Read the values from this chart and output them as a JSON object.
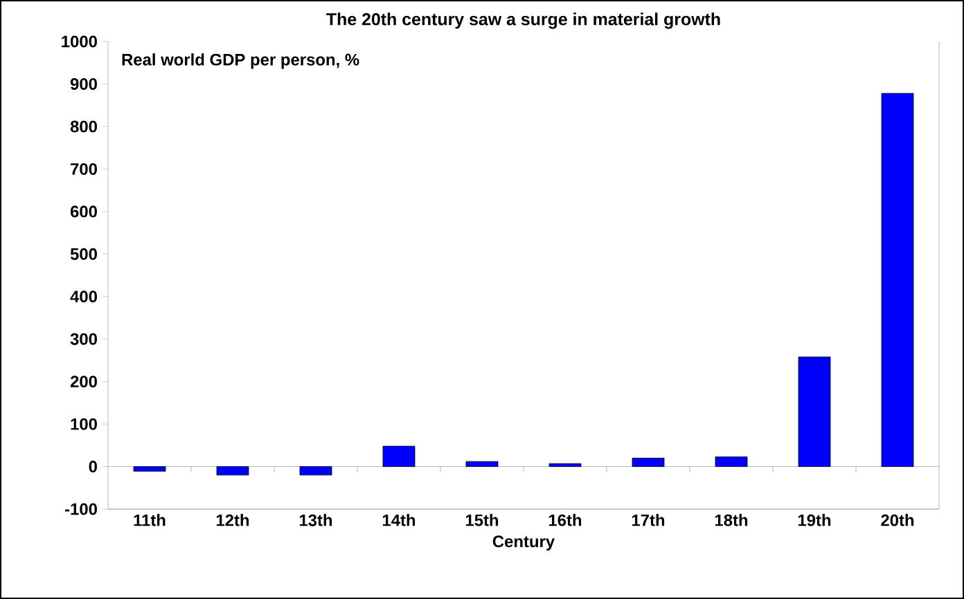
{
  "chart_data": {
    "type": "bar",
    "title": "The 20th century saw a surge in material growth",
    "subtitle": "Real world GDP per person, %",
    "xlabel": "Century",
    "categories": [
      "11th",
      "12th",
      "13th",
      "14th",
      "15th",
      "16th",
      "17th",
      "18th",
      "19th",
      "20th"
    ],
    "values": [
      -11,
      -20,
      -20,
      48,
      12,
      7,
      20,
      23,
      258,
      878
    ],
    "color": "#0000ff",
    "ylim": [
      -100,
      1000
    ],
    "yticks": [
      -100,
      0,
      100,
      200,
      300,
      400,
      500,
      600,
      700,
      800,
      900,
      1000
    ]
  }
}
